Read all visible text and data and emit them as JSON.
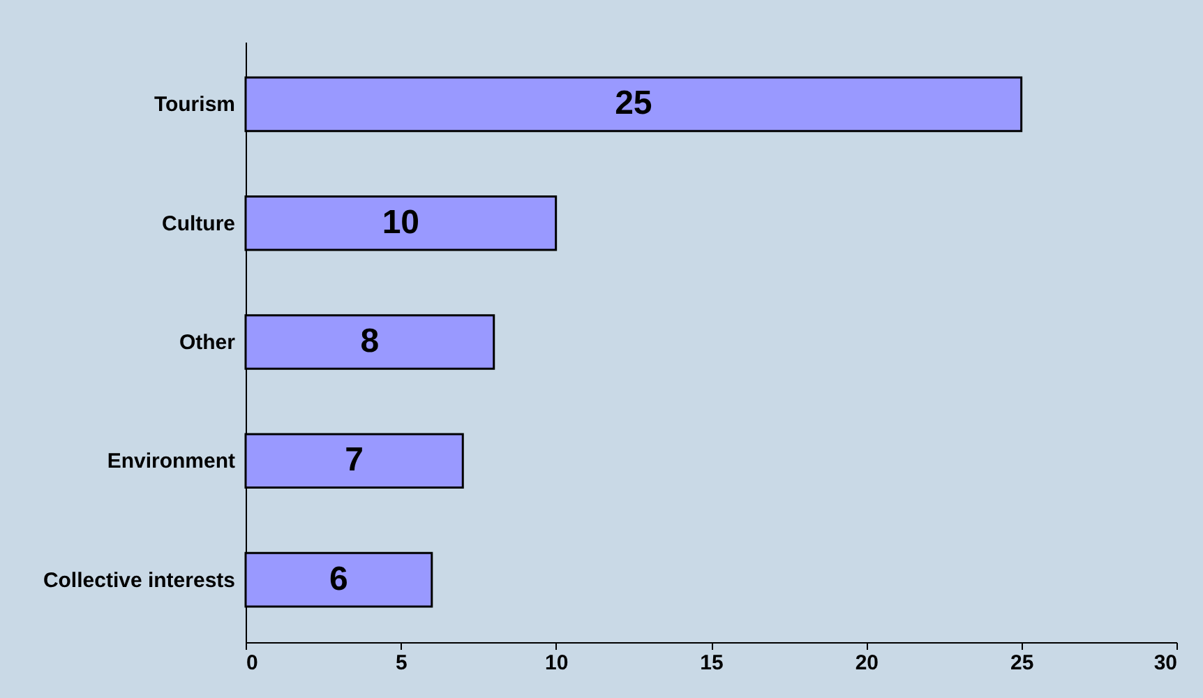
{
  "chart_data": {
    "type": "bar",
    "orientation": "horizontal",
    "categories": [
      "Tourism",
      "Culture",
      "Other",
      "Environment",
      "Collective interests"
    ],
    "values": [
      25,
      10,
      8,
      7,
      6
    ],
    "color": "#9999ff",
    "xlim": [
      0,
      30
    ],
    "xticks": [
      0,
      5,
      10,
      15,
      20,
      25,
      30
    ],
    "data_labels": true,
    "grid": false
  }
}
